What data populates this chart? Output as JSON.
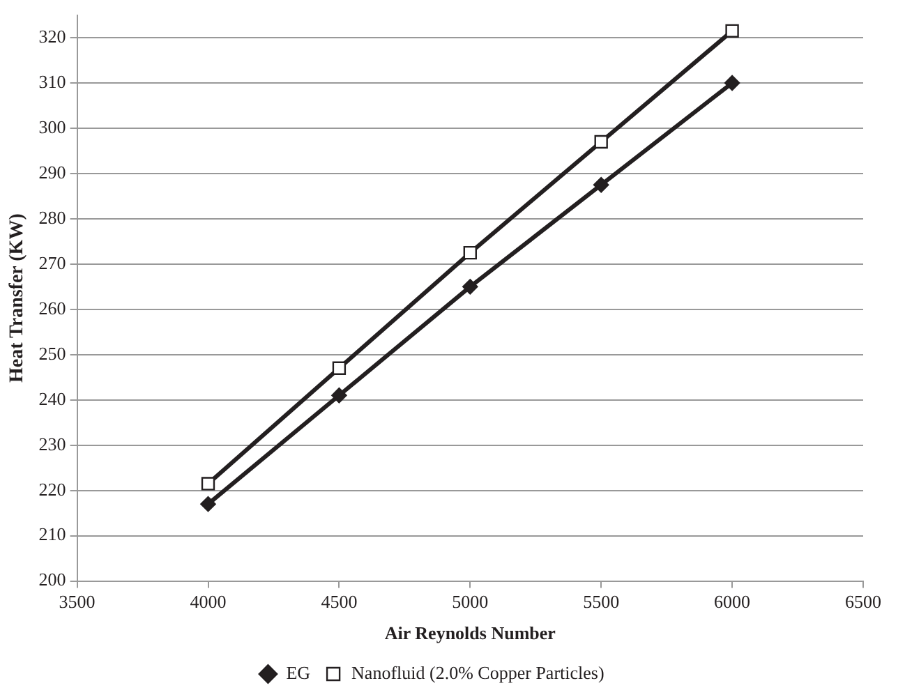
{
  "chart_data": {
    "type": "line",
    "xlabel": "Air Reynolds Number",
    "ylabel": "Heat Transfer (KW)",
    "x": [
      4000,
      4500,
      5000,
      5500,
      6000
    ],
    "series": [
      {
        "name": "EG",
        "color": "#231f20",
        "marker": "diamond",
        "values": [
          217,
          241,
          265,
          287.5,
          310
        ]
      },
      {
        "name": "Nanofluid (2.0% Copper Particles)",
        "color": "#231f20",
        "marker": "square",
        "values": [
          221.5,
          247,
          272.5,
          297,
          321.5
        ]
      }
    ],
    "xlim": [
      3500,
      6500
    ],
    "xticks": [
      3500,
      4000,
      4500,
      5000,
      5500,
      6000,
      6500
    ],
    "ylim": [
      200,
      325
    ],
    "yticks": [
      200,
      210,
      220,
      230,
      240,
      250,
      260,
      270,
      280,
      290,
      300,
      310,
      320
    ],
    "grid": "y",
    "legend": "bottom",
    "line_style": "solid"
  }
}
